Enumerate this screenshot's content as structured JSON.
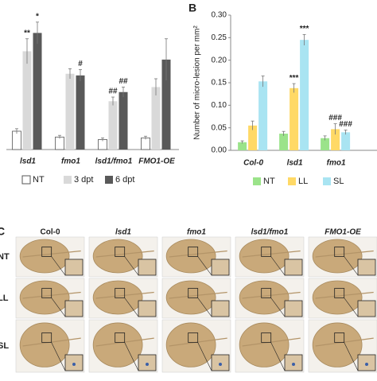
{
  "chart_data": [
    {
      "type": "bar",
      "categories": [
        "lsd1",
        "fmo1",
        "lsd1/fmo1",
        "FMO1-OE"
      ],
      "series": [
        {
          "name": "NT",
          "color": "#ffffff",
          "values": [
            22,
            15,
            12,
            14
          ],
          "errors": [
            3,
            2,
            2,
            2
          ],
          "annotations": [
            null,
            null,
            null,
            null
          ]
        },
        {
          "name": "3 dpt",
          "color": "#d9d9d9",
          "values": [
            118,
            91,
            58,
            75
          ],
          "errors": [
            15,
            6,
            5,
            10
          ],
          "annotations": [
            "**",
            null,
            "##",
            null
          ]
        },
        {
          "name": "6 dpt",
          "color": "#595959",
          "values": [
            140,
            89,
            69,
            108
          ],
          "errors": [
            13,
            7,
            6,
            25
          ],
          "annotations": [
            "*",
            "#",
            "##",
            null
          ]
        }
      ],
      "ylim": [
        0,
        170
      ]
    },
    {
      "type": "bar",
      "panel": "B",
      "y_label": "Number of micro-lesion per mm²",
      "categories": [
        "Col-0",
        "lsd1",
        "fmo1"
      ],
      "series": [
        {
          "name": "NT",
          "color": "#9be38a",
          "values": [
            0.018,
            0.037,
            0.027
          ],
          "errors": [
            0.003,
            0.005,
            0.005
          ],
          "annotations": [
            null,
            null,
            null
          ]
        },
        {
          "name": "LL",
          "color": "#ffd966",
          "values": [
            0.055,
            0.138,
            0.047
          ],
          "errors": [
            0.01,
            0.01,
            0.012
          ],
          "annotations": [
            null,
            "***",
            "###"
          ]
        },
        {
          "name": "SL",
          "color": "#a9e4f2",
          "values": [
            0.153,
            0.245,
            0.04
          ],
          "errors": [
            0.012,
            0.012,
            0.005
          ],
          "annotations": [
            null,
            "***",
            "###"
          ]
        }
      ],
      "ylim": [
        0,
        0.3
      ],
      "yticks": [
        {
          "value": 0,
          "label": "0.00"
        },
        {
          "value": 0.05,
          "label": "0.05"
        },
        {
          "value": 0.1,
          "label": "0.10"
        },
        {
          "value": 0.15,
          "label": "0.15"
        },
        {
          "value": 0.2,
          "label": "0.20"
        },
        {
          "value": 0.25,
          "label": "0.25"
        },
        {
          "value": 0.3,
          "label": "0.30"
        }
      ]
    }
  ],
  "panel_c": {
    "label": "C",
    "columns": [
      "Col-0",
      "lsd1",
      "fmo1",
      "lsd1/fmo1",
      "FMO1-OE"
    ],
    "rows": [
      "NT",
      "LL",
      "SL"
    ]
  }
}
